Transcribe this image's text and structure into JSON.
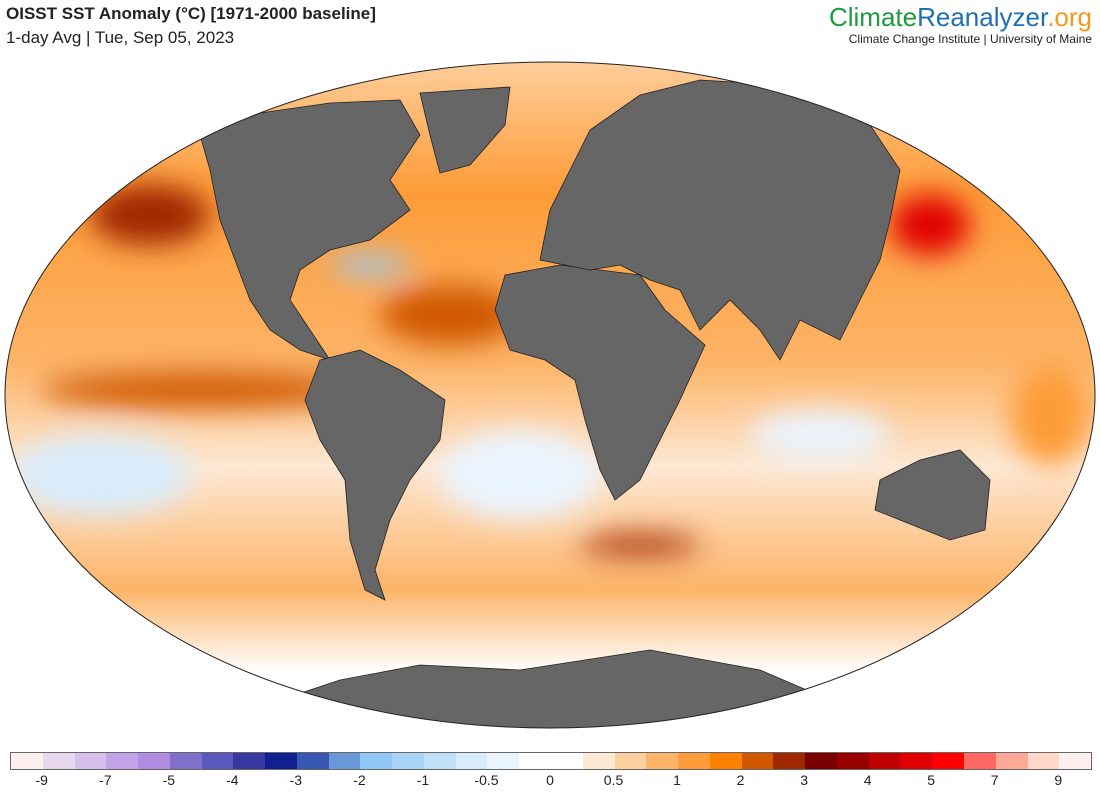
{
  "header": {
    "title": "OISST SST Anomaly (°C) [1971-2000 baseline]",
    "subtitle": "1-day Avg | Tue, Sep 05, 2023",
    "brand_part1": "Climate",
    "brand_part2": "Reanalyzer",
    "brand_part3": ".org",
    "institution": "Climate Change Institute | University of Maine"
  },
  "colors": {
    "land": "#666666",
    "ocean_warm": "#fd9c38"
  },
  "colorbar": {
    "colors": [
      "#fff0f0",
      "#e8d8f0",
      "#d8c0ec",
      "#c4a4e8",
      "#b08ce0",
      "#8070cc",
      "#5a58bc",
      "#3838a0",
      "#10208c",
      "#3858b4",
      "#6898d8",
      "#90c8f8",
      "#a8d4f8",
      "#c0e0f8",
      "#d8ecfc",
      "#eaf4ff",
      "#ffffff",
      "#ffffff",
      "#fde8d4",
      "#fdd0a0",
      "#fdb468",
      "#fd9c38",
      "#fd8000",
      "#d05800",
      "#a02800",
      "#780000",
      "#980000",
      "#c00000",
      "#e00000",
      "#ff0000",
      "#ff6860",
      "#ffa898",
      "#ffd8c8",
      "#fff0f0"
    ],
    "labels": [
      "-9",
      "-7",
      "-5",
      "-4",
      "-3",
      "-2",
      "-1",
      "-0.5",
      "0",
      "0.5",
      "1",
      "2",
      "3",
      "4",
      "5",
      "7",
      "9"
    ]
  }
}
